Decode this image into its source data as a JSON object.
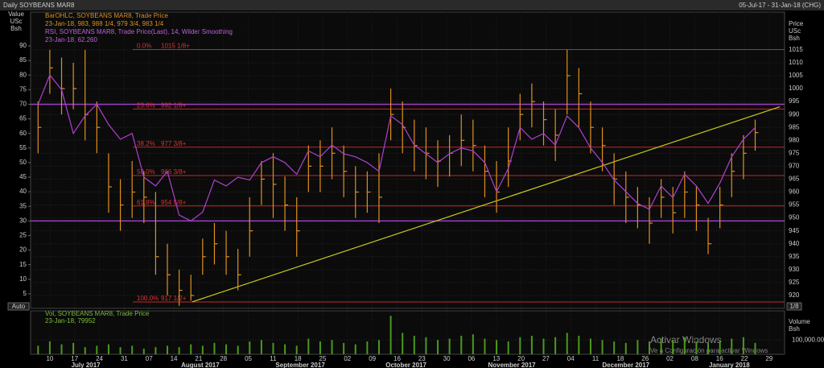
{
  "chart_data": {
    "type": "ohlc",
    "title": "Daily SOYBEANS MAR8",
    "date_range": "05-Jul-17 - 31-Jan-18 (CHG)",
    "left_axis_label": [
      "Value",
      "USc",
      "Bsh"
    ],
    "right_axis_label": [
      "Price",
      "USc",
      "Bsh"
    ],
    "legend": [
      {
        "name": "BarOHLC, SOYBEANS MAR8, Trade Price",
        "detail": "23-Jan-18, 983, 988 1/4, 979 3/4, 983 1/4",
        "color": "#e0901c"
      },
      {
        "name": "RSI, SOYBEANS MAR8, Trade Price(Last), 14, Wilder Smoothing",
        "detail": "23-Jan-18, 62.260",
        "color": "#c060e0"
      }
    ],
    "auto": "Auto",
    "fraction": "1/8",
    "xlim": [
      0,
      64
    ],
    "xticks": [
      {
        "value": 1.5,
        "label": "10"
      },
      {
        "value": 3.61,
        "label": "17"
      },
      {
        "value": 5.72,
        "label": "24"
      },
      {
        "value": 7.83,
        "label": "31"
      },
      {
        "value": 9.94,
        "label": "07"
      },
      {
        "value": 12.05,
        "label": "14"
      },
      {
        "value": 14.16,
        "label": "21"
      },
      {
        "value": 16.27,
        "label": "28"
      },
      {
        "value": 18.38,
        "label": "05"
      },
      {
        "value": 20.49,
        "label": "11"
      },
      {
        "value": 22.6,
        "label": "18"
      },
      {
        "value": 24.71,
        "label": "25"
      },
      {
        "value": 26.82,
        "label": "02"
      },
      {
        "value": 28.93,
        "label": "09"
      },
      {
        "value": 31.04,
        "label": "16"
      },
      {
        "value": 33.15,
        "label": "23"
      },
      {
        "value": 35.26,
        "label": "30"
      },
      {
        "value": 37.37,
        "label": "06"
      },
      {
        "value": 39.48,
        "label": "13"
      },
      {
        "value": 41.59,
        "label": "20"
      },
      {
        "value": 43.7,
        "label": "27"
      },
      {
        "value": 45.81,
        "label": "04"
      },
      {
        "value": 47.92,
        "label": "11"
      },
      {
        "value": 50.03,
        "label": "18"
      },
      {
        "value": 52.14,
        "label": "26"
      },
      {
        "value": 54.25,
        "label": "02"
      },
      {
        "value": 56.36,
        "label": "08"
      },
      {
        "value": 58.47,
        "label": "16"
      },
      {
        "value": 60.58,
        "label": "22"
      },
      {
        "value": 62.69,
        "label": "29"
      }
    ],
    "months": [
      {
        "value": 4.56,
        "label": "July 2017"
      },
      {
        "value": 14.3,
        "label": "August 2017"
      },
      {
        "value": 22.8,
        "label": "September 2017"
      },
      {
        "value": 31.8,
        "label": "October 2017"
      },
      {
        "value": 40.8,
        "label": "November 2017"
      },
      {
        "value": 50.5,
        "label": "December 2017"
      },
      {
        "value": 59.3,
        "label": "January 2018"
      }
    ],
    "ylim": [
      915,
      1029.6
    ],
    "yticks": [
      920,
      925,
      930,
      935,
      940,
      945,
      950,
      955,
      960,
      965,
      970,
      975,
      980,
      985,
      990,
      995,
      1000,
      1005,
      1010,
      1015
    ],
    "y2lim": [
      0,
      101.6
    ],
    "y2ticks": [
      5,
      10,
      15,
      20,
      25,
      30,
      35,
      40,
      45,
      50,
      55,
      60,
      65,
      70,
      75,
      80,
      85,
      90
    ],
    "color": "#e0901c",
    "high": [
      995,
      1015,
      1012,
      1010,
      1015,
      995,
      975,
      965,
      972,
      968,
      960,
      940,
      930,
      928,
      942,
      948,
      945,
      938,
      958,
      972,
      975,
      966,
      958,
      978,
      980,
      985,
      978,
      970,
      968,
      975,
      1000,
      995,
      988,
      985,
      980,
      982,
      990,
      988,
      978,
      972,
      985,
      998,
      1002,
      995,
      992,
      1015,
      1008,
      995,
      985,
      975,
      968,
      962,
      958,
      965,
      962,
      968,
      962,
      950,
      962,
      975,
      982,
      988
    ],
    "low": [
      975,
      998,
      990,
      992,
      980,
      975,
      952,
      945,
      950,
      948,
      928,
      920,
      916,
      918,
      928,
      932,
      928,
      922,
      935,
      955,
      950,
      945,
      935,
      960,
      960,
      965,
      958,
      950,
      952,
      948,
      980,
      975,
      968,
      965,
      962,
      966,
      970,
      968,
      958,
      952,
      962,
      980,
      985,
      978,
      972,
      990,
      985,
      975,
      968,
      955,
      948,
      946,
      940,
      950,
      944,
      950,
      945,
      936,
      946,
      958,
      965,
      976
    ],
    "close": [
      985,
      1008,
      1000,
      1000,
      990,
      985,
      962,
      955,
      960,
      958,
      935,
      928,
      922,
      920,
      935,
      940,
      935,
      928,
      945,
      965,
      963,
      955,
      945,
      970,
      970,
      975,
      968,
      960,
      960,
      958,
      990,
      985,
      978,
      975,
      972,
      975,
      980,
      978,
      968,
      960,
      972,
      990,
      995,
      988,
      982,
      1005,
      998,
      985,
      978,
      965,
      958,
      955,
      948,
      958,
      952,
      960,
      955,
      940,
      955,
      968,
      975,
      983
    ],
    "rsi": {
      "name": "RSI",
      "color": "#b040d0",
      "axis": "y2",
      "values": [
        70,
        80,
        75,
        60,
        66,
        70,
        63,
        58,
        60,
        45,
        42,
        47,
        32,
        30,
        33,
        44,
        42,
        45,
        44,
        50,
        52,
        50,
        46,
        54,
        52,
        56,
        53,
        52,
        50,
        47,
        66,
        63,
        56,
        53,
        50,
        53,
        55,
        54,
        50,
        40,
        48,
        62,
        58,
        60,
        56,
        66,
        62,
        55,
        50,
        44,
        40,
        36,
        34,
        42,
        38,
        46,
        42,
        36,
        43,
        52,
        58,
        62
      ]
    },
    "rsi_levels": [
      70,
      30
    ],
    "fib": [
      {
        "value": 1015.125,
        "pct": "0.0%",
        "label": "1015 1/8+"
      },
      {
        "value": 992.125,
        "pct": "23.6%",
        "label": "992 1/8+"
      },
      {
        "value": 977.375,
        "pct": "38.2%",
        "label": "977 3/8+"
      },
      {
        "value": 966.375,
        "pct": "50.0%",
        "label": "966 3/8+"
      },
      {
        "value": 954.625,
        "pct": "61.8%",
        "label": "954 5/8+"
      },
      {
        "value": 917.5,
        "pct": "100.0%",
        "label": "917 1/2+"
      }
    ],
    "trendline": {
      "x": [
        13.6,
        63.6
      ],
      "price": [
        917.5,
        993
      ]
    },
    "volume": {
      "legend": {
        "name": "Vol, SOYBEANS MAR8, Trade Price",
        "detail": "23-Jan-18, 79952"
      },
      "axis_label": [
        "Volume",
        "Bsh"
      ],
      "color": "#4a9a1a",
      "ylim": [
        0,
        305000
      ],
      "yticks": [
        {
          "value": 100000,
          "label": "100,000.0000"
        }
      ],
      "values": [
        60000,
        90000,
        70000,
        80000,
        50000,
        60000,
        70000,
        50000,
        60000,
        40000,
        50000,
        60000,
        50000,
        70000,
        60000,
        80000,
        70000,
        60000,
        90000,
        100000,
        80000,
        70000,
        60000,
        110000,
        90000,
        100000,
        80000,
        70000,
        90000,
        100000,
        270000,
        150000,
        130000,
        120000,
        100000,
        110000,
        130000,
        140000,
        110000,
        100000,
        90000,
        120000,
        130000,
        110000,
        120000,
        150000,
        130000,
        110000,
        100000,
        90000,
        80000,
        100000,
        90000,
        110000,
        100000,
        120000,
        90000,
        80000,
        100000,
        110000,
        120000,
        79952
      ]
    }
  },
  "watermark": {
    "title": "Activar Windows",
    "subtitle": "Ve a Configuración para activar Windows"
  }
}
